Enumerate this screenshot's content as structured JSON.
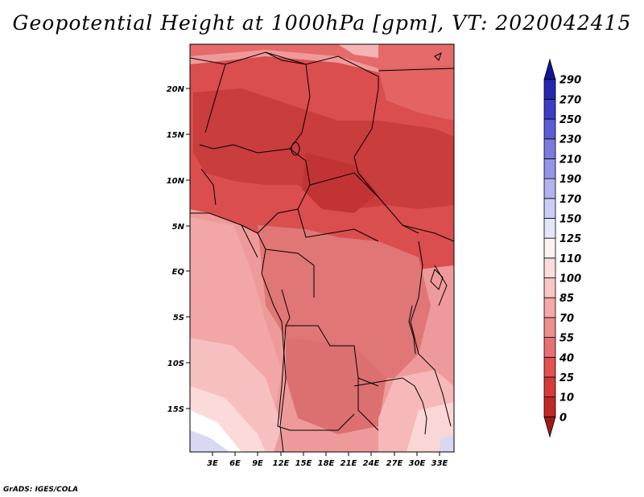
{
  "title": "Geopotential Height at 1000hPa [gpm], VT: 2020042415",
  "credit": "GrADS: IGES/COLA",
  "axes": {
    "lat_ticks": [
      "20N",
      "15N",
      "10N",
      "5N",
      "EQ",
      "5S",
      "10S",
      "15S"
    ],
    "lon_ticks": [
      "3E",
      "6E",
      "9E",
      "12E",
      "15E",
      "18E",
      "21E",
      "24E",
      "27E",
      "30E",
      "33E"
    ]
  },
  "colorbar": {
    "labels": [
      "0",
      "10",
      "25",
      "40",
      "55",
      "70",
      "85",
      "100",
      "110",
      "125",
      "150",
      "170",
      "190",
      "210",
      "230",
      "250",
      "270",
      "290"
    ],
    "colors": [
      "#a01818",
      "#c02828",
      "#d53a3a",
      "#e25050",
      "#e87070",
      "#ef8e8e",
      "#f5a8a8",
      "#f9c4c4",
      "#fcdcdc",
      "#fdf2f2",
      "#e6e6fa",
      "#ccccf6",
      "#b2b2f0",
      "#9494ea",
      "#7a7ae0",
      "#5c5cd4",
      "#3c3cc4",
      "#2626b0",
      "#141496"
    ]
  },
  "colors": {
    "frame": "#000000",
    "border": "#000000",
    "deep_red": "#c43a3a",
    "mid_red": "#d94c4c",
    "light_red": "#e27070",
    "pink": "#f0a0a0",
    "light_pink": "#f8c6c6",
    "pale": "#fde8e8",
    "white": "#ffffff",
    "lavender": "#d8d8f4"
  }
}
